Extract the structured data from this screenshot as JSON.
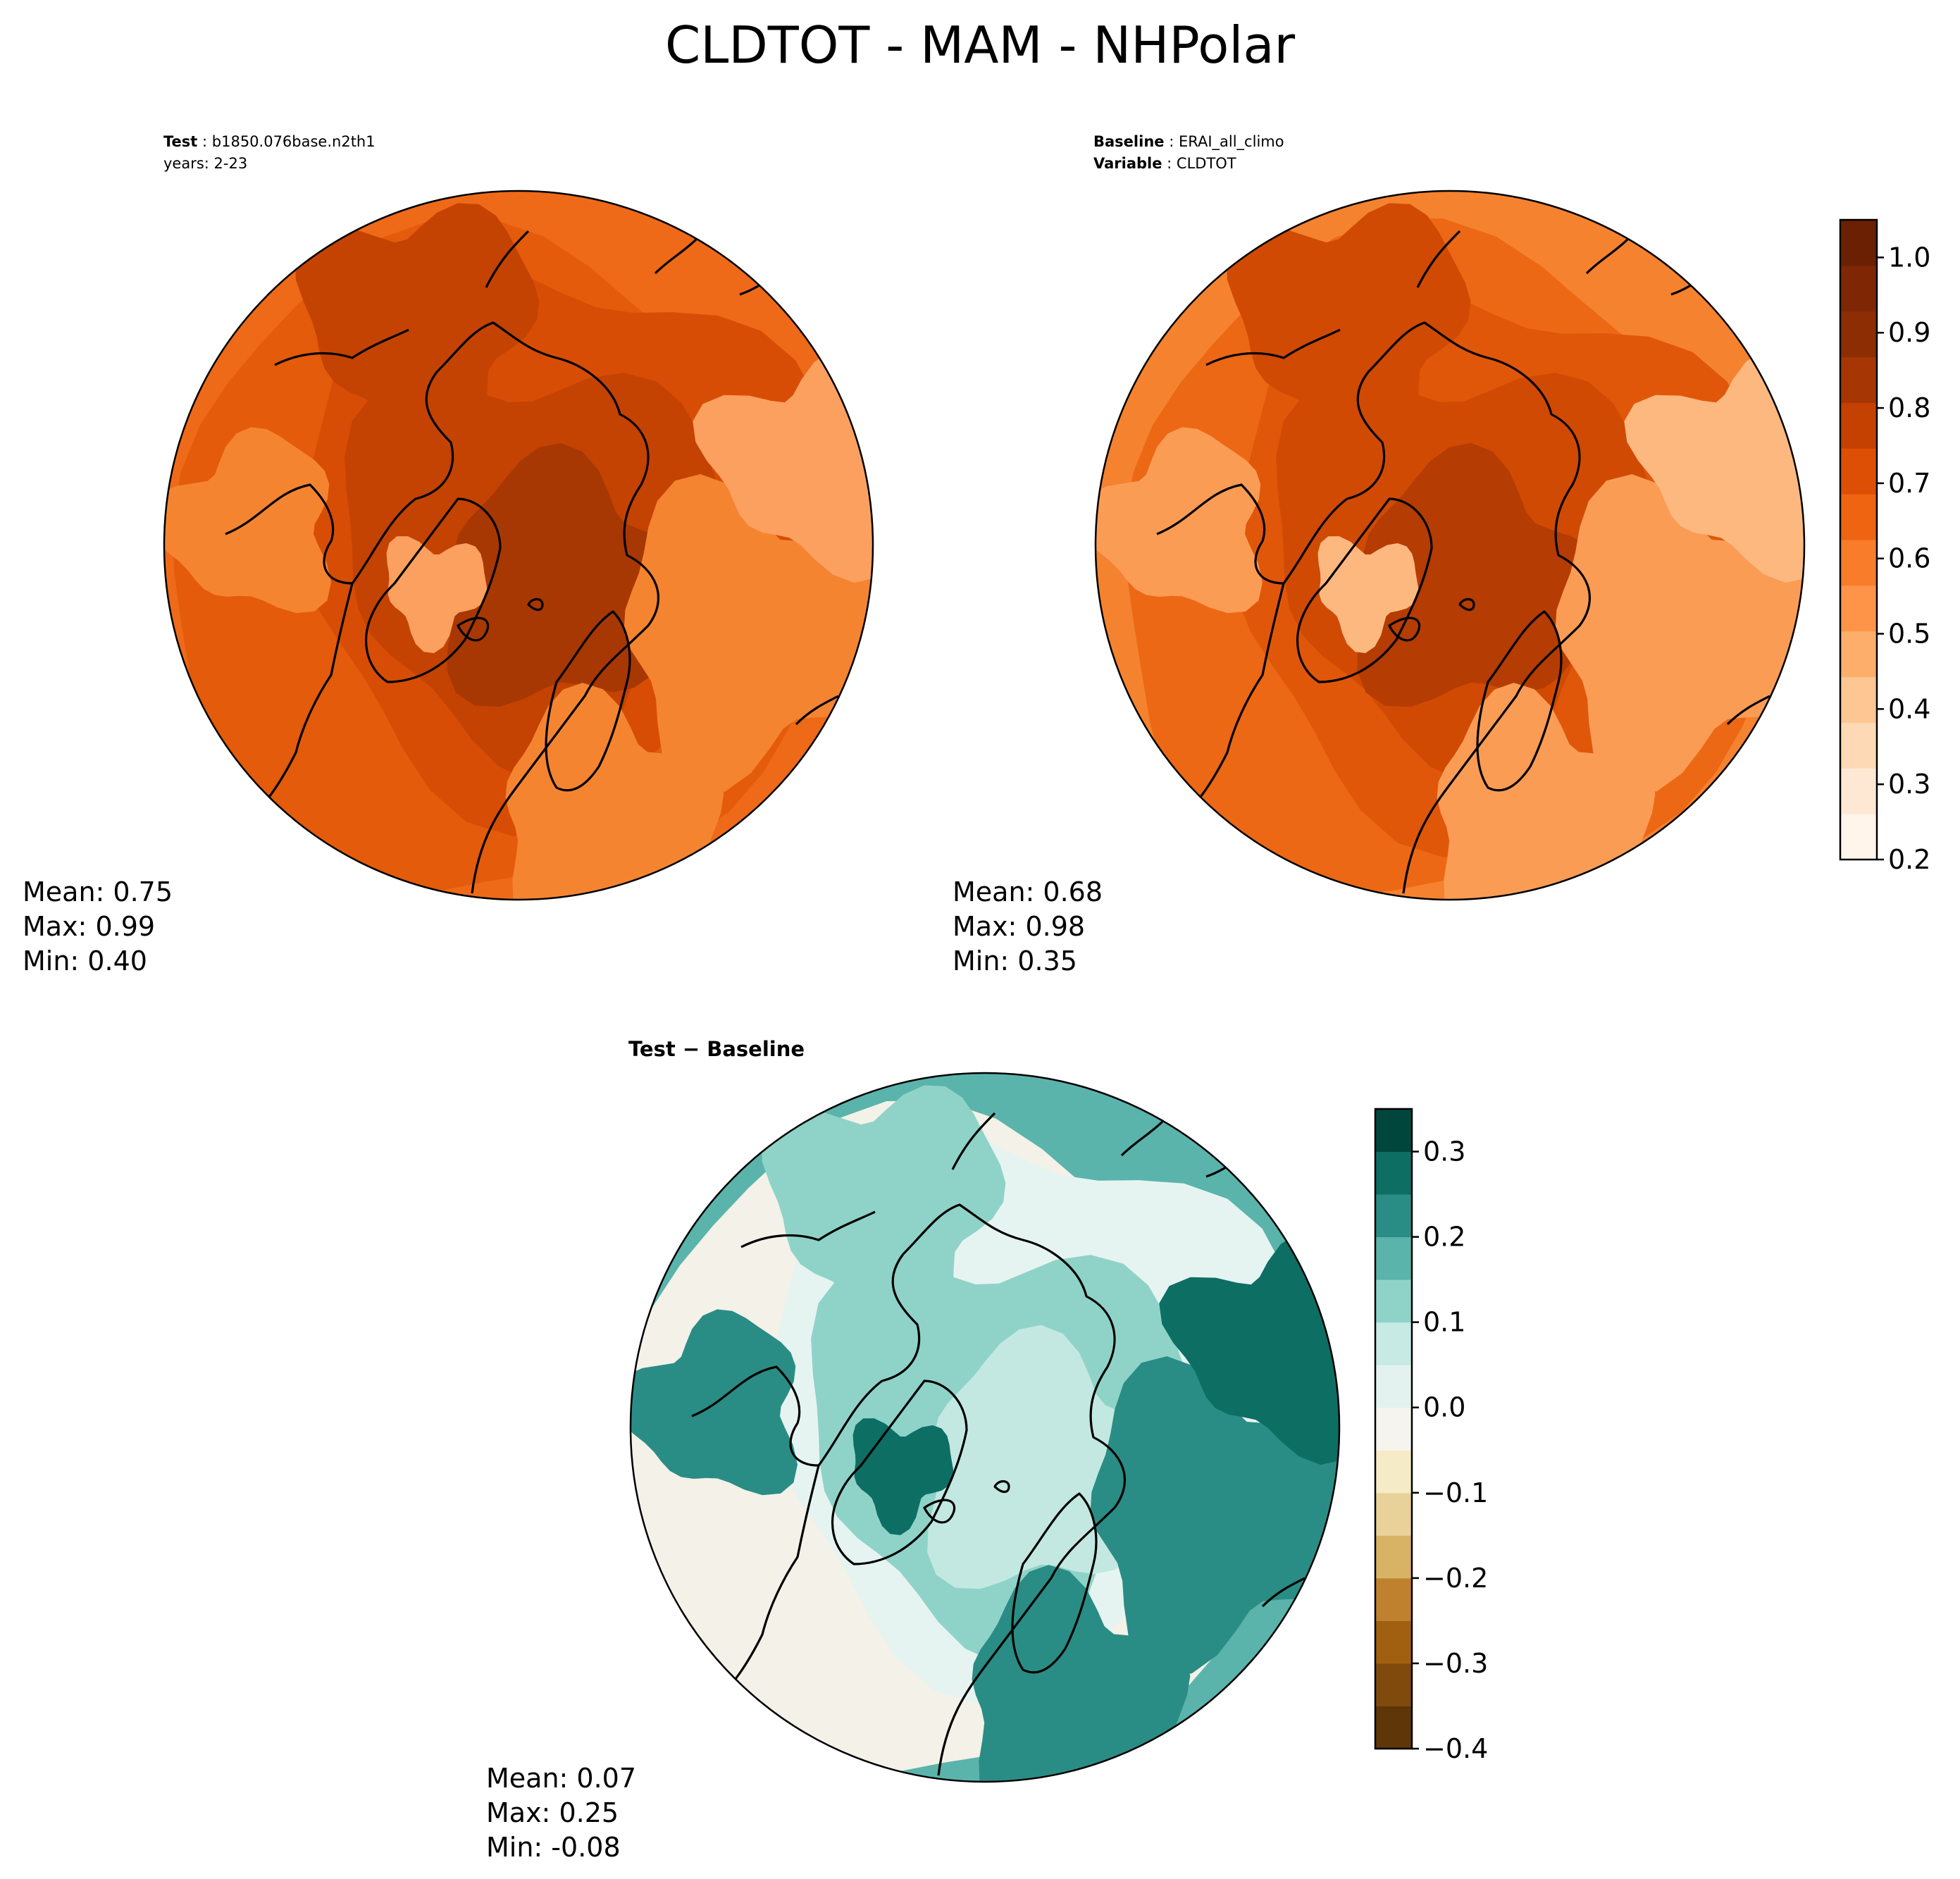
{
  "figure": {
    "title": "CLDTOT - MAM - NHPolar"
  },
  "panels": {
    "test": {
      "label": "Test",
      "case": "b1850.076base.n2th1",
      "years_line": "years: 2-23",
      "stats": {
        "mean": "Mean:  0.75",
        "max": "Max:  0.99",
        "min": "Min:  0.40"
      }
    },
    "baseline": {
      "label": "Baseline",
      "case": "ERAI_all_climo",
      "variable_label": "Variable",
      "variable": "CLDTOT",
      "stats": {
        "mean": "Mean:  0.68",
        "max": "Max:  0.98",
        "min": "Min:  0.35"
      }
    },
    "diff": {
      "title": "Test − Baseline",
      "stats": {
        "mean": "Mean:  0.07",
        "max": "Max:  0.25",
        "min": "Min: -0.08"
      }
    }
  },
  "colorbars": {
    "main": {
      "colormap": "Oranges",
      "range": [
        0.2,
        1.05
      ],
      "ticks": [
        "0.2",
        "0.3",
        "0.4",
        "0.5",
        "0.6",
        "0.7",
        "0.8",
        "0.9",
        "1.0"
      ],
      "colors": [
        "#fff5eb",
        "#fee8d4",
        "#fdd9b5",
        "#fdc693",
        "#fdae6b",
        "#fd9447",
        "#f87c2a",
        "#ee6411",
        "#de4f06",
        "#c54102",
        "#a63603",
        "#8c2d04",
        "#7f2704",
        "#6b1f03"
      ]
    },
    "diff": {
      "colormap": "BrBG",
      "range": [
        -0.4,
        0.35
      ],
      "ticks": [
        "−0.4",
        "−0.3",
        "−0.2",
        "−0.1",
        "0.0",
        "0.1",
        "0.2",
        "0.3"
      ],
      "colors": [
        "#5e3608",
        "#7f4a0c",
        "#a0600f",
        "#bf812d",
        "#d8b365",
        "#e8d29a",
        "#f5ebc6",
        "#f5f4ee",
        "#e3f2ef",
        "#c7eae5",
        "#8fd3c8",
        "#5ab4ab",
        "#2a8d85",
        "#0d6e64",
        "#01463d"
      ]
    }
  },
  "maps": {
    "test_colors": [
      "#a83803",
      "#c44302",
      "#d84d05",
      "#e35b0b",
      "#ee6a18",
      "#f58431",
      "#fca060"
    ],
    "baseline_colors": [
      "#b53c02",
      "#d04a04",
      "#e0570a",
      "#ec6815",
      "#f5822f",
      "#fb9c55",
      "#fdb880"
    ],
    "diff_colors": [
      "#c3e8e2",
      "#8fd3c8",
      "#e6f4f1",
      "#f3f1e8",
      "#5ab4ab",
      "#2a8d85",
      "#0d6e64"
    ],
    "coast_color": "#000000"
  }
}
